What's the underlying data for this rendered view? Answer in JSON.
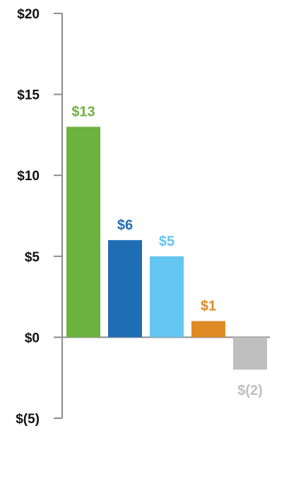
{
  "chart_data": {
    "type": "bar",
    "title": "",
    "xlabel": "",
    "ylabel": "",
    "ylim": [
      -5,
      20
    ],
    "y_ticks": [
      20,
      15,
      10,
      5,
      0,
      -5
    ],
    "y_tick_labels": [
      "$20",
      "$15",
      "$10",
      "$5",
      "$0",
      "$(5)"
    ],
    "grid": false,
    "legend": "none",
    "bars": [
      {
        "value": 13,
        "label": "$13",
        "color": "#6db33f"
      },
      {
        "value": 6,
        "label": "$6",
        "color": "#1f6db5"
      },
      {
        "value": 5,
        "label": "$5",
        "color": "#63c6f0"
      },
      {
        "value": 1,
        "label": "$1",
        "color": "#e08a26"
      },
      {
        "value": -2,
        "label": "$(2)",
        "color": "#bfbfbf"
      }
    ]
  }
}
